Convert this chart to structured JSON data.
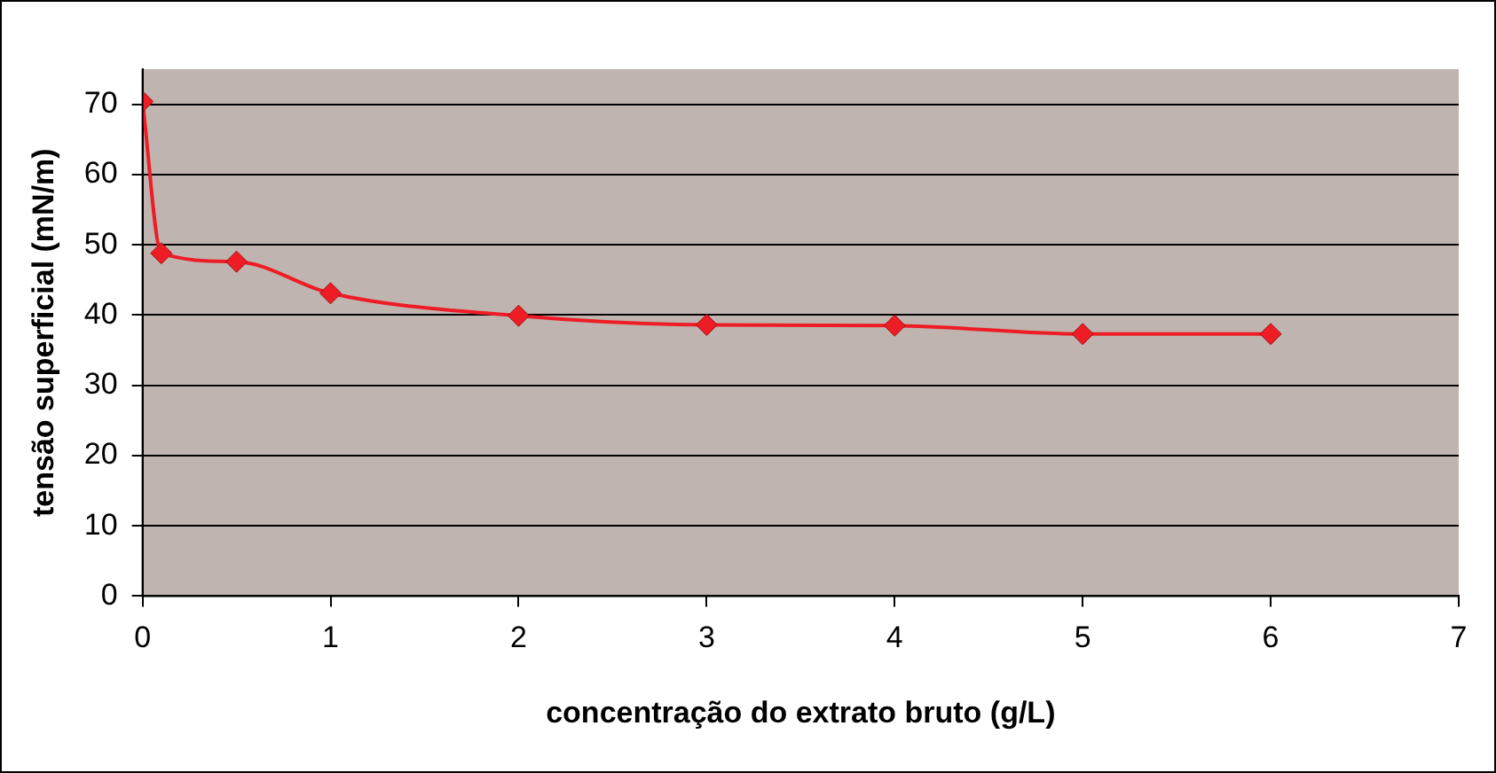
{
  "chart_data": {
    "type": "line",
    "xlabel": "concentração do extrato bruto (g/L)",
    "ylabel": "tensão superficial (mN/m)",
    "series": [
      {
        "color": "#ee1c25",
        "x": [
          0,
          0.1,
          0.5,
          1,
          2,
          3,
          4,
          5,
          6
        ],
        "values": [
          70.4,
          48.8,
          47.6,
          43.1,
          39.9,
          38.6,
          38.5,
          37.3,
          37.3
        ]
      }
    ],
    "xlim": [
      0,
      7
    ],
    "xticks": [
      0,
      1,
      2,
      3,
      4,
      5,
      6,
      7
    ],
    "ylim": [
      0,
      75
    ],
    "yticks": [
      0,
      10,
      20,
      30,
      40,
      50,
      60,
      70
    ],
    "grid": "y",
    "legend": false,
    "marker": "diamond",
    "line_style": "solid"
  }
}
